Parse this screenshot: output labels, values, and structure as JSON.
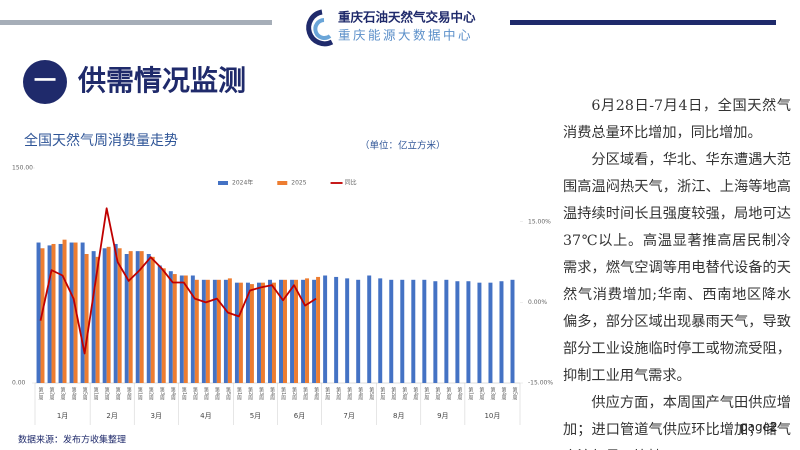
{
  "header": {
    "org": "重庆石油天然气交易中心",
    "sub_org": "重庆能源大数据中心"
  },
  "section": {
    "number": "一",
    "title": "供需情况监测"
  },
  "chart_data": {
    "type": "bar_line",
    "title": "全国天然气周消费量走势",
    "unit": "（单位：亿立方米）",
    "months": [
      {
        "name": "1月",
        "weeks": [
          "第1周",
          "第2周",
          "第3周",
          "第4周",
          "第5周"
        ]
      },
      {
        "name": "2月",
        "weeks": [
          "第1周",
          "第2周",
          "第3周",
          "第4周"
        ]
      },
      {
        "name": "3月",
        "weeks": [
          "第1周",
          "第2周",
          "第3周",
          "第4周"
        ]
      },
      {
        "name": "4月",
        "weeks": [
          "第1周",
          "第2周",
          "第3周",
          "第4周",
          "第5周"
        ]
      },
      {
        "name": "5月",
        "weeks": [
          "第1周",
          "第2周",
          "第3周",
          "第4周"
        ]
      },
      {
        "name": "6月",
        "weeks": [
          "第1周",
          "第2周",
          "第3周",
          "第4周"
        ]
      },
      {
        "name": "7月",
        "weeks": [
          "第1周",
          "第2周",
          "第3周",
          "第4周",
          "第5周"
        ]
      },
      {
        "name": "8月",
        "weeks": [
          "第1周",
          "第2周",
          "第3周",
          "第4周"
        ]
      },
      {
        "name": "9月",
        "weeks": [
          "第1周",
          "第2周",
          "第3周",
          "第4周"
        ]
      },
      {
        "name": "10月",
        "weeks": [
          "第1周",
          "第2周",
          "第3周",
          "第4周",
          "第5周"
        ]
      }
    ],
    "series": [
      {
        "name": "2024年",
        "color": "#4472c4",
        "kind": "bar",
        "values": [
          98,
          96,
          97,
          98,
          98,
          92,
          94,
          97,
          90,
          92,
          90,
          82,
          78,
          75,
          75,
          72,
          72,
          72,
          70,
          70,
          70,
          72,
          72,
          72,
          72,
          72,
          75,
          74,
          73,
          72,
          75,
          73,
          72,
          72,
          72,
          72,
          71,
          72,
          71,
          71,
          70,
          70,
          71,
          72
        ]
      },
      {
        "name": "2025",
        "color": "#ed7d31",
        "kind": "bar",
        "values": [
          94,
          97,
          100,
          98,
          90,
          88,
          95,
          94,
          92,
          92,
          88,
          80,
          76,
          75,
          72,
          72,
          72,
          73,
          70,
          69,
          70,
          70,
          72,
          72,
          73,
          74,
          null,
          null,
          null,
          null,
          null,
          null,
          null,
          null,
          null,
          null,
          null,
          null,
          null,
          null,
          null,
          null,
          null,
          null
        ]
      },
      {
        "name": "同比",
        "color": "#c00000",
        "kind": "line",
        "axis": "y2",
        "values": [
          -3.4,
          6,
          5,
          0.7,
          -9.5,
          4,
          17.5,
          7.5,
          4,
          6,
          8.4,
          6.3,
          3.7,
          3.7,
          0.7,
          0,
          0.7,
          -1.9,
          -2.6,
          2.2,
          2.8,
          3.2,
          0.4,
          3.2,
          -0.6,
          0.7,
          null,
          null,
          null,
          null,
          null,
          null,
          null,
          null,
          null,
          null,
          null,
          null,
          null,
          null,
          null,
          null,
          null,
          null
        ]
      }
    ],
    "ylim": [
      0,
      150
    ],
    "yticks": [
      {
        "value": 0,
        "label": "0.00"
      },
      {
        "value": 150,
        "label": "150.00"
      }
    ],
    "y2lim": [
      -15,
      25
    ],
    "y2ticks": [
      {
        "value": -15,
        "label": "-15.00%"
      },
      {
        "value": 0,
        "label": "0.00%"
      },
      {
        "value": 15,
        "label": "15.00%"
      }
    ],
    "legend": "top",
    "source": "数据来源：发布方收集整理"
  },
  "commentary": [
    "6月28日-7月4日，全国天然气消费总量环比增加，同比增加。",
    "分区域看，华北、华东遭遇大范围高温闷热天气，浙江、上海等地高温持续时间长且强度较强，局地可达37℃以上。高温显著推高居民制冷需求，燃气空调等用电替代设备的天然气消费增加;华南、西南地区降水偏多，部分区域出现暴雨天气，导致部分工业设施临时停工或物流受阻，抑制工业用气需求。",
    "供应方面，本周国产气田供应增加；进口管道气供应环比增加；储气库注气量环比持平。"
  ],
  "page": "page2"
}
